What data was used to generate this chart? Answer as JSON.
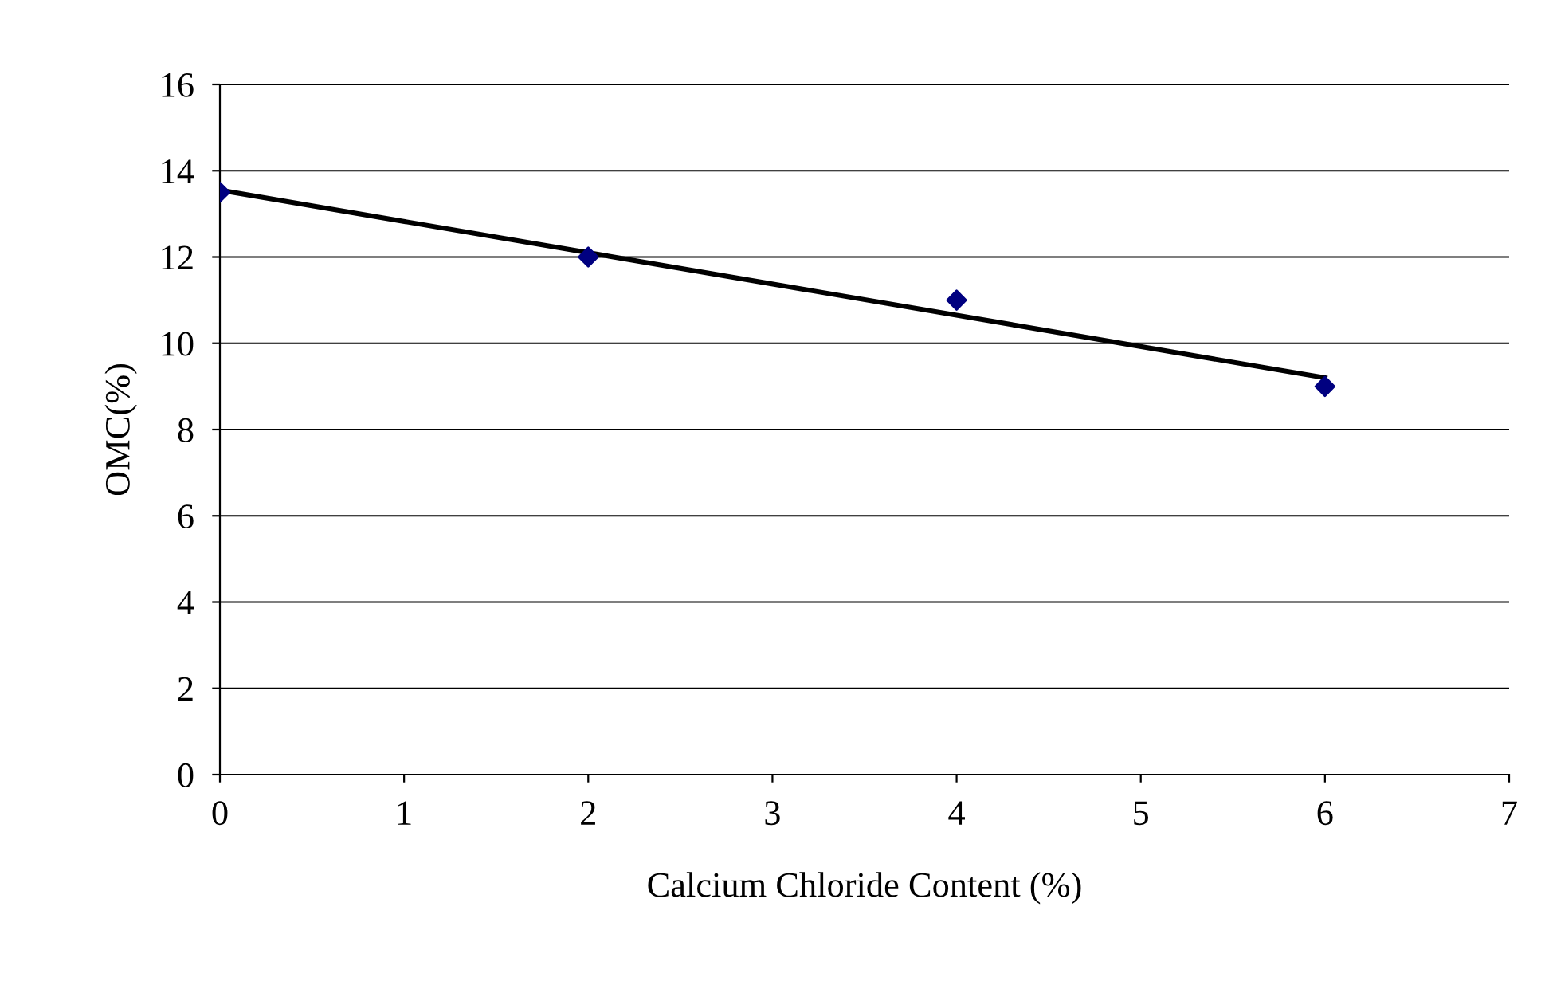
{
  "chart_data": {
    "type": "scatter",
    "xlabel": "Calcium Chloride Content (%)",
    "ylabel": "OMC(%)",
    "xlim": [
      0,
      7
    ],
    "xticks": [
      0,
      1,
      2,
      3,
      4,
      5,
      6,
      7
    ],
    "ylim": [
      0,
      16
    ],
    "yticks": [
      0,
      2,
      4,
      6,
      8,
      10,
      12,
      14,
      16
    ],
    "grid": "y",
    "legend": false,
    "marker": "diamond",
    "series": [
      {
        "color": "#000080",
        "x": [
          0,
          2,
          4,
          6
        ],
        "values": [
          13.5,
          12,
          11,
          9
        ]
      },
      {
        "type": "line",
        "color": "#000000",
        "marker": "none",
        "line_style": "solid",
        "x": [
          0,
          6
        ],
        "values": [
          13.55,
          9.2
        ]
      }
    ]
  }
}
